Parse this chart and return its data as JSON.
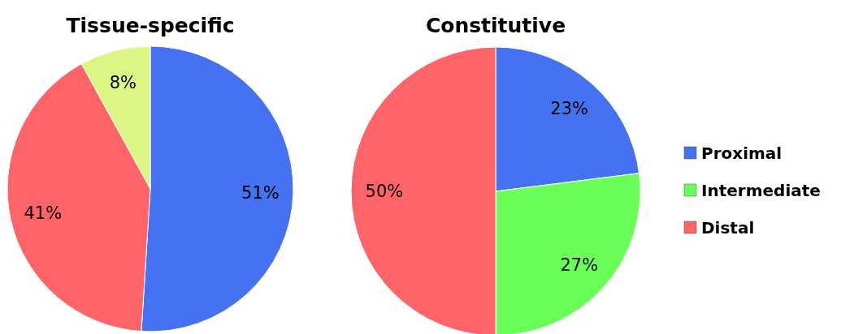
{
  "chart_data": [
    {
      "type": "pie",
      "title": "Tissue-specific",
      "categories": [
        null,
        null,
        null
      ],
      "values": [
        51,
        41,
        8
      ],
      "colors": [
        "#4472f0",
        "#ff6468",
        "#dcf684"
      ],
      "value_labels": [
        "51%",
        "41%",
        "8%"
      ]
    },
    {
      "type": "pie",
      "title": "Constitutive",
      "categories": [
        "Proximal",
        "Intermediate",
        "Distal"
      ],
      "values": [
        23,
        27,
        50
      ],
      "colors": [
        "#4472f0",
        "#6aff58",
        "#ff6468"
      ],
      "value_labels": [
        "23%",
        "27%",
        "50%"
      ],
      "legend": "right"
    }
  ]
}
